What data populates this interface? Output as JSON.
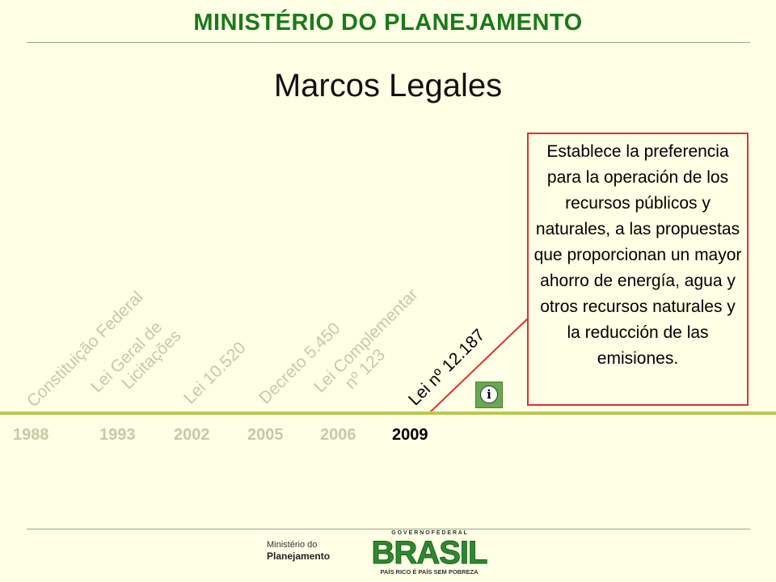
{
  "header": {
    "title": "MINISTÉRIO DO PLANEJAMENTO"
  },
  "slide": {
    "title": "Marcos Legales"
  },
  "timeline": {
    "laws": [
      {
        "text": "Constituição Federal",
        "active": false
      },
      {
        "line1": "Lei Geral de",
        "line2": "Licitações",
        "active": false
      },
      {
        "text": "Lei 10.520",
        "active": false
      },
      {
        "text": "Decreto 5.450",
        "active": false
      },
      {
        "line1": "Lei Complementar",
        "line2": "nº 123",
        "active": false
      },
      {
        "text": "Lei nº 12.187",
        "active": true
      }
    ],
    "years": [
      "1988",
      "1993",
      "2002",
      "2005",
      "2006",
      "2009"
    ],
    "active_year": "2009"
  },
  "info_box": {
    "text": "Establece la preferencia para la operación de los recursos públicos y naturales, a las propuestas que proporcionan un mayor ahorro de energía, agua y otros recursos naturales y la reducción de las emisiones."
  },
  "info_icon": {
    "glyph": "i",
    "icon": "info-icon"
  },
  "footer": {
    "ministerio_line1": "Ministério do",
    "ministerio_line2": "Planejamento",
    "gov_top": "G O V E R N O   F E D E R A L",
    "brasil": "BRASIL",
    "slogan": "PAÍS RICO É PAÍS SEM POBREZA"
  },
  "colors": {
    "accent_green": "#1a7a1a",
    "line_red": "#e03030",
    "inactive": "#c8c8a8",
    "bar": "#b5cc45"
  }
}
